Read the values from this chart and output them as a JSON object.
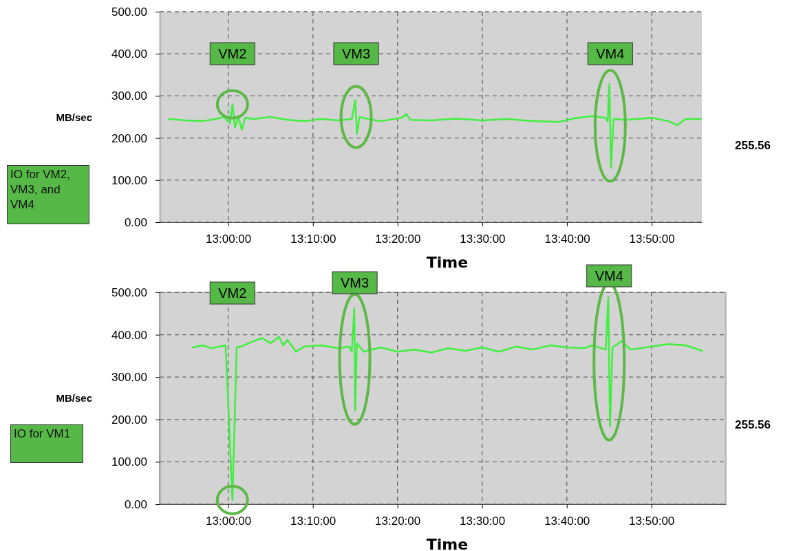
{
  "chart_data": [
    {
      "type": "line",
      "xlabel": "Time",
      "ylabel": "MB/sec",
      "xlim": [
        12.865,
        13.932
      ],
      "ylim": [
        0,
        500
      ],
      "grid": true,
      "xticks": [
        {
          "value": 13,
          "label": "13:00:00"
        },
        {
          "value": 13.1667,
          "label": "13:10:00"
        },
        {
          "value": 13.3333,
          "label": "13:20:00"
        },
        {
          "value": 13.5,
          "label": "13:30:00"
        },
        {
          "value": 13.6667,
          "label": "13:40:00"
        },
        {
          "value": 13.8333,
          "label": "13:50:00"
        }
      ],
      "yticks": [
        {
          "value": 0,
          "label": "0.00"
        },
        {
          "value": 100,
          "label": "100.00"
        },
        {
          "value": 200,
          "label": "200.00"
        },
        {
          "value": 300,
          "label": "300.00"
        },
        {
          "value": 400,
          "label": "400.00"
        },
        {
          "value": 500,
          "label": "500.00"
        }
      ],
      "series": [
        {
          "color": "#3ef03e",
          "x": [
            12.8833,
            12.9167,
            12.95,
            12.975,
            12.9917,
            13.0033,
            13.0083,
            13.0133,
            13.02,
            13.0267,
            13.0333,
            13.05,
            13.0833,
            13.1167,
            13.15,
            13.1833,
            13.2167,
            13.2433,
            13.25,
            13.2533,
            13.2583,
            13.275,
            13.3,
            13.3417,
            13.35,
            13.3583,
            13.4,
            13.45,
            13.5,
            13.55,
            13.6,
            13.65,
            13.6833,
            13.7167,
            13.7417,
            13.7467,
            13.75,
            13.7533,
            13.7583,
            13.7833,
            13.8333,
            13.8667,
            13.8833,
            13.9,
            13.93
          ],
          "values": [
            245,
            242,
            240,
            245,
            250,
            235,
            280,
            225,
            250,
            220,
            248,
            245,
            250,
            243,
            240,
            245,
            242,
            245,
            290,
            210,
            250,
            245,
            240,
            248,
            257,
            243,
            242,
            246,
            242,
            245,
            240,
            238,
            247,
            252,
            248,
            240,
            328,
            130,
            245,
            243,
            248,
            240,
            230,
            245,
            245
          ]
        }
      ],
      "annotations": [
        "IO for VM2, VM3, and VM4",
        "255.56",
        "VM2",
        "VM3",
        "VM4"
      ]
    },
    {
      "type": "line",
      "xlabel": "Time",
      "ylabel": "MB/sec",
      "xlim": [
        12.865,
        13.98
      ],
      "ylim": [
        0,
        500
      ],
      "grid": true,
      "xticks": [
        {
          "value": 13,
          "label": "13:00:00"
        },
        {
          "value": 13.1667,
          "label": "13:10:00"
        },
        {
          "value": 13.3333,
          "label": "13:20:00"
        },
        {
          "value": 13.5,
          "label": "13:30:00"
        },
        {
          "value": 13.6667,
          "label": "13:40:00"
        },
        {
          "value": 13.8333,
          "label": "13:50:00"
        }
      ],
      "yticks": [
        {
          "value": 0,
          "label": "0.00"
        },
        {
          "value": 100,
          "label": "100.00"
        },
        {
          "value": 200,
          "label": "200.00"
        },
        {
          "value": 300,
          "label": "300.00"
        },
        {
          "value": 400,
          "label": "400.00"
        },
        {
          "value": 500,
          "label": "500.00"
        }
      ],
      "series": [
        {
          "color": "#3ef03e",
          "x": [
            12.93,
            12.95,
            12.9667,
            12.9833,
            12.995,
            13.0083,
            13.0167,
            13.025,
            13.05,
            13.0667,
            13.0833,
            13.1,
            13.1083,
            13.1167,
            13.1333,
            13.15,
            13.1833,
            13.2167,
            13.2383,
            13.2433,
            13.2483,
            13.25,
            13.2533,
            13.2667,
            13.3,
            13.3333,
            13.3667,
            13.4,
            13.4333,
            13.4667,
            13.5,
            13.5333,
            13.5667,
            13.6,
            13.6333,
            13.6667,
            13.7,
            13.7167,
            13.7433,
            13.7483,
            13.7517,
            13.7567,
            13.775,
            13.7917,
            13.8333,
            13.8667,
            13.9,
            13.9333
          ],
          "values": [
            370,
            375,
            368,
            372,
            375,
            10,
            370,
            372,
            385,
            392,
            380,
            395,
            375,
            388,
            360,
            372,
            375,
            368,
            372,
            360,
            463,
            221,
            380,
            360,
            370,
            360,
            365,
            358,
            368,
            362,
            370,
            360,
            372,
            365,
            375,
            370,
            368,
            375,
            365,
            489,
            184,
            370,
            385,
            365,
            372,
            378,
            375,
            362
          ]
        }
      ],
      "annotations": [
        "IO for VM1",
        "255.56",
        "VM2",
        "VM3",
        "VM4"
      ]
    }
  ]
}
